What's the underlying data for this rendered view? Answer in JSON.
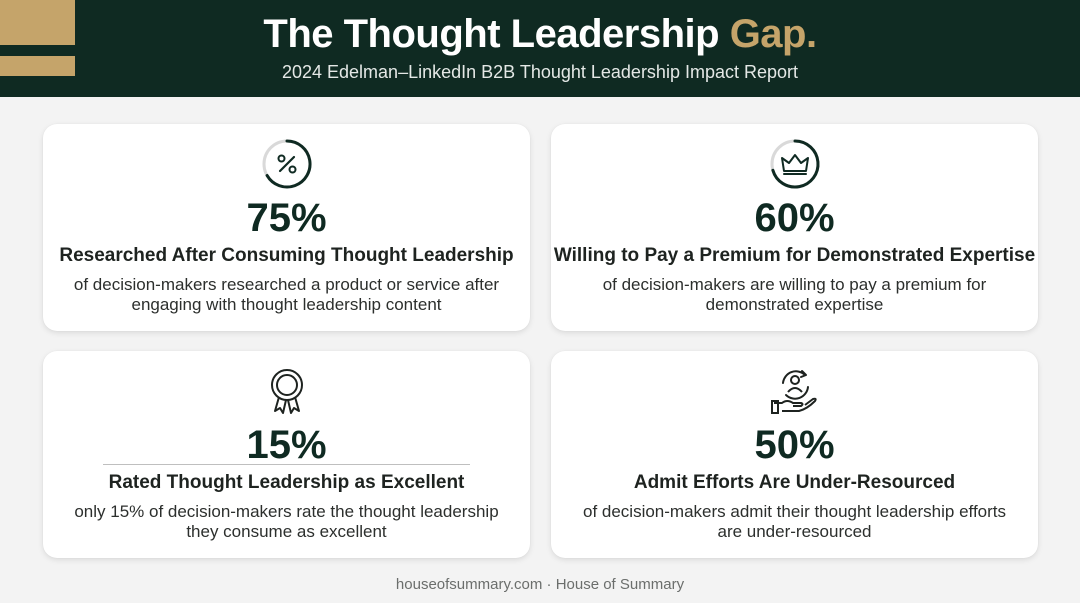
{
  "header": {
    "title_main": "The Thought Leadership",
    "title_accent": "Gap.",
    "subtitle": "2024 Edelman–LinkedIn B2B Thought Leadership Impact Report"
  },
  "colors": {
    "dark_green": "#0f2a22",
    "gold": "#c5a46a",
    "background": "#f3f3f3"
  },
  "cards": [
    {
      "icon": "percent-gauge-icon",
      "stat": "75%",
      "heading": "Researched After Consuming Thought Leadership",
      "description": "of decision-makers researched a product or service after engaging with thought leadership content"
    },
    {
      "icon": "crown-icon",
      "stat": "60%",
      "heading": "Willing to Pay a Premium for Demonstrated Expertise",
      "description": "of decision-makers are willing to pay a premium for demonstrated expertise"
    },
    {
      "icon": "award-badge-icon",
      "stat": "15%",
      "heading": "Rated Thought Leadership as Excellent",
      "description": "only 15% of decision-makers rate the thought leadership they consume as excellent"
    },
    {
      "icon": "hand-person-cycle-icon",
      "stat": "50%",
      "heading": "Admit Efforts Are Under-Resourced",
      "description": "of decision-makers admit their thought leadership efforts are under-resourced"
    }
  ],
  "footer": {
    "text": "houseofsummary.com · House of Summary"
  }
}
